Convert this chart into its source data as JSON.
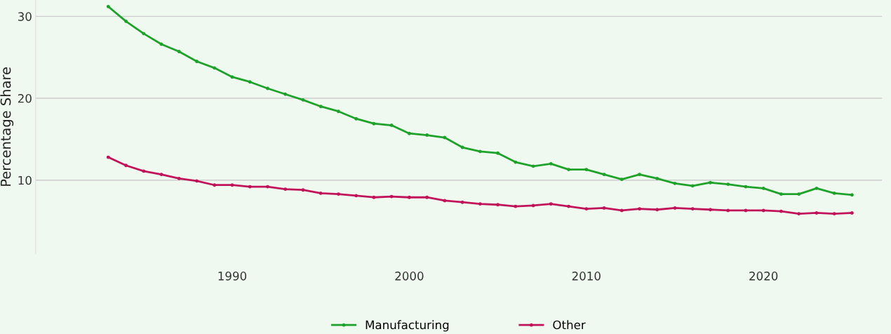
{
  "chart_data": {
    "type": "line",
    "ylabel": "Percentage Share",
    "x": [
      1983,
      1984,
      1985,
      1986,
      1987,
      1988,
      1989,
      1990,
      1991,
      1992,
      1993,
      1994,
      1995,
      1996,
      1997,
      1998,
      1999,
      2000,
      2001,
      2002,
      2003,
      2004,
      2005,
      2006,
      2007,
      2008,
      2009,
      2010,
      2011,
      2012,
      2013,
      2014,
      2015,
      2016,
      2017,
      2018,
      2019,
      2020,
      2021,
      2022,
      2023,
      2024,
      2025
    ],
    "series": [
      {
        "name": "Manufacturing",
        "color": "#1fa22a",
        "values": [
          31.2,
          29.4,
          27.9,
          26.6,
          25.7,
          24.5,
          23.7,
          22.6,
          22.0,
          21.2,
          20.5,
          19.8,
          19.0,
          18.4,
          17.5,
          16.9,
          16.7,
          15.7,
          15.5,
          15.2,
          14.0,
          13.5,
          13.3,
          12.2,
          11.7,
          12.0,
          11.3,
          11.3,
          10.7,
          10.1,
          10.7,
          10.2,
          9.6,
          9.3,
          9.7,
          9.5,
          9.2,
          9.0,
          8.3,
          8.3,
          9.0,
          8.4,
          8.2
        ]
      },
      {
        "name": "Other",
        "color": "#c0135a",
        "values": [
          12.8,
          11.8,
          11.1,
          10.7,
          10.2,
          9.9,
          9.4,
          9.4,
          9.2,
          9.2,
          8.9,
          8.8,
          8.4,
          8.3,
          8.1,
          7.9,
          8.0,
          7.9,
          7.9,
          7.5,
          7.3,
          7.1,
          7.0,
          6.8,
          6.9,
          7.1,
          6.8,
          6.5,
          6.6,
          6.3,
          6.5,
          6.4,
          6.6,
          6.5,
          6.4,
          6.3,
          6.3,
          6.3,
          6.2,
          5.9,
          6.0,
          5.9,
          6.0
        ]
      }
    ],
    "xlim": [
      1978.9,
      2026.7
    ],
    "xticks": [
      1990,
      2000,
      2010,
      2020
    ],
    "ylim": [
      1,
      32
    ],
    "yticks": [
      10,
      20,
      30
    ],
    "grid": "y",
    "legend": "bottom",
    "marker": "circle",
    "line_style": "solid"
  }
}
